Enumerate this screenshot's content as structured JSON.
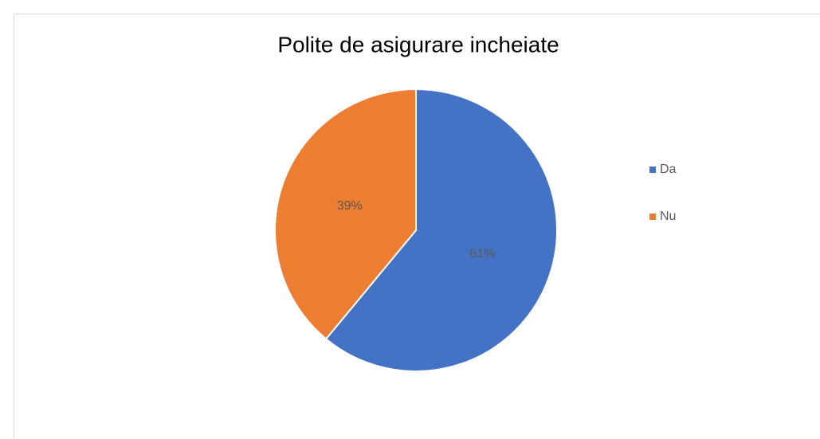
{
  "chart_data": {
    "type": "pie",
    "title": "Polite de asigurare incheiate",
    "categories": [
      "Da",
      "Nu"
    ],
    "values": [
      61,
      39
    ],
    "value_labels": [
      "61%",
      "39%"
    ],
    "colors": [
      "#4472c4",
      "#ed7d31"
    ],
    "legend": "right"
  }
}
